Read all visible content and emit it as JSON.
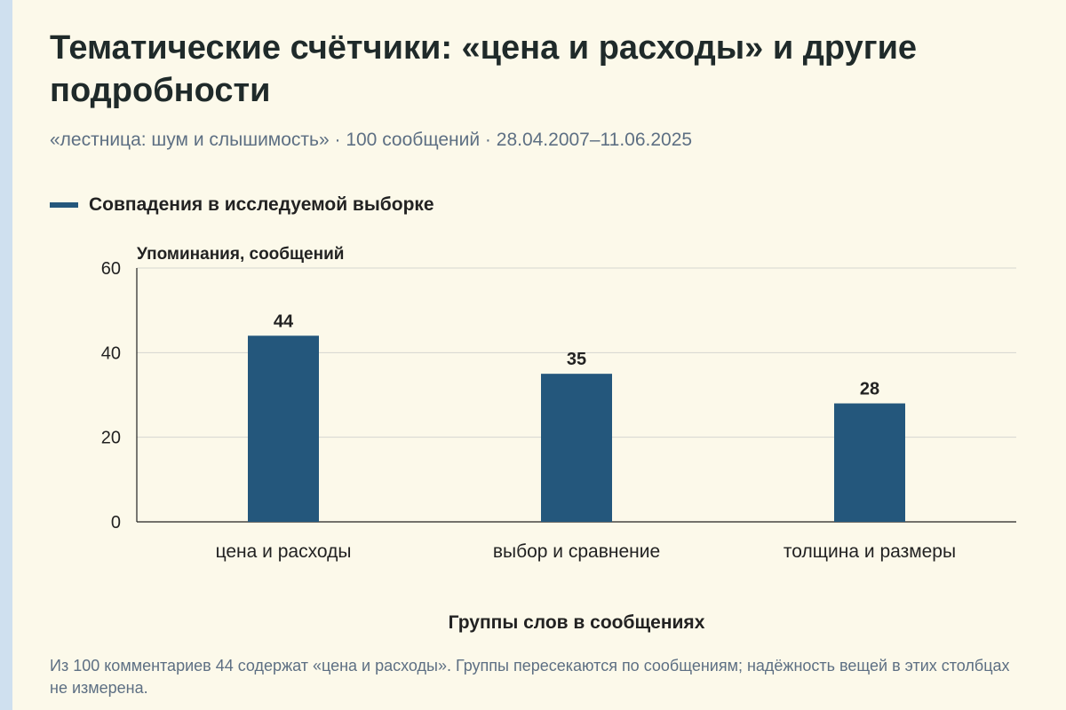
{
  "title": "Тематические счётчики: «цена и расходы» и другие подробности",
  "subtitle": "«лестница: шум и слышимость» · 100 сообщений · 28.04.2007–11.06.2025",
  "footnote": "Из 100 комментариев 44 содержат «цена и расходы». Группы пересекаются по сообщениям; надёжность вещей в этих столбцах не измерена.",
  "colors": {
    "bar": "#24577c",
    "background": "#fcf9ea",
    "muted_text": "#5d6f83"
  },
  "chart_data": {
    "type": "bar",
    "legend": "Совпадения в исследуемой выборке",
    "legend_position": "top-left",
    "ylabel": "Упоминания, сообщений",
    "xlabel": "Группы слов в сообщениях",
    "categories": [
      "цена и расходы",
      "выбор и сравнение",
      "толщина и размеры"
    ],
    "series": [
      {
        "name": "Совпадения в исследуемой выборке",
        "values": [
          44,
          35,
          28
        ]
      }
    ],
    "ylim": [
      0,
      60
    ],
    "yticks": [
      0,
      20,
      40,
      60
    ],
    "grid": true
  }
}
